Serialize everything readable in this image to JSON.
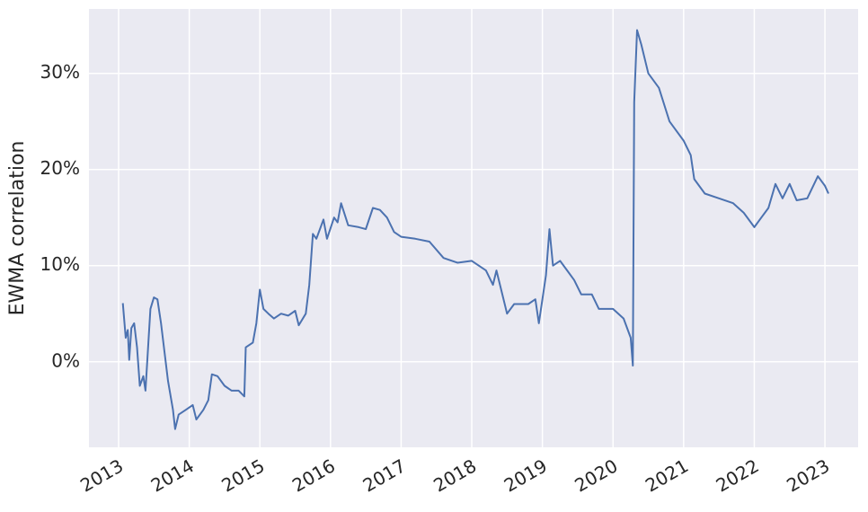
{
  "chart_data": {
    "type": "line",
    "ylabel": "EWMA correlation",
    "color": "#4c72b0",
    "grid": true,
    "xlim": [
      2012.58,
      2023.47
    ],
    "xticks": [
      2013,
      2014,
      2015,
      2016,
      2017,
      2018,
      2019,
      2020,
      2021,
      2022,
      2023
    ],
    "ylim": [
      -8.9,
      36.7
    ],
    "yticks": [
      {
        "value": 0,
        "label": "0%"
      },
      {
        "value": 10,
        "label": "10%"
      },
      {
        "value": 20,
        "label": "20%"
      },
      {
        "value": 30,
        "label": "30%"
      }
    ],
    "x": [
      2013.06,
      2013.1,
      2013.13,
      2013.15,
      2013.18,
      2013.22,
      2013.26,
      2013.3,
      2013.35,
      2013.38,
      2013.45,
      2013.5,
      2013.55,
      2013.6,
      2013.65,
      2013.7,
      2013.77,
      2013.8,
      2013.85,
      2013.95,
      2014.05,
      2014.1,
      2014.2,
      2014.27,
      2014.32,
      2014.4,
      2014.5,
      2014.6,
      2014.7,
      2014.78,
      2014.8,
      2014.9,
      2014.95,
      2015.0,
      2015.05,
      2015.12,
      2015.2,
      2015.3,
      2015.4,
      2015.5,
      2015.55,
      2015.65,
      2015.7,
      2015.75,
      2015.8,
      2015.9,
      2015.95,
      2016.05,
      2016.1,
      2016.15,
      2016.25,
      2016.4,
      2016.5,
      2016.6,
      2016.7,
      2016.8,
      2016.9,
      2017.0,
      2017.2,
      2017.4,
      2017.6,
      2017.8,
      2018.0,
      2018.2,
      2018.3,
      2018.35,
      2018.45,
      2018.5,
      2018.6,
      2018.8,
      2018.9,
      2018.95,
      2019.05,
      2019.1,
      2019.15,
      2019.25,
      2019.35,
      2019.45,
      2019.55,
      2019.7,
      2019.8,
      2020.0,
      2020.15,
      2020.25,
      2020.28,
      2020.3,
      2020.34,
      2020.4,
      2020.5,
      2020.65,
      2020.8,
      2021.0,
      2021.1,
      2021.15,
      2021.3,
      2021.5,
      2021.7,
      2021.85,
      2022.0,
      2022.1,
      2022.2,
      2022.3,
      2022.4,
      2022.5,
      2022.6,
      2022.75,
      2022.9,
      2023.0,
      2023.05
    ],
    "values": [
      6.1,
      2.5,
      3.3,
      0.2,
      3.5,
      4.0,
      1.5,
      -2.5,
      -1.5,
      -3.0,
      5.5,
      6.7,
      6.5,
      4.0,
      1.0,
      -2.0,
      -5.0,
      -7.0,
      -5.5,
      -5.0,
      -4.5,
      -6.0,
      -5.0,
      -4.0,
      -1.3,
      -1.5,
      -2.5,
      -3.0,
      -3.0,
      -3.6,
      1.5,
      2.0,
      4.0,
      7.5,
      5.5,
      5.0,
      4.5,
      5.0,
      4.8,
      5.3,
      3.8,
      5.0,
      8.0,
      13.3,
      12.8,
      14.8,
      12.8,
      15.0,
      14.5,
      16.5,
      14.2,
      14.0,
      13.8,
      16.0,
      15.8,
      15.0,
      13.5,
      13.0,
      12.8,
      12.5,
      10.8,
      10.3,
      10.5,
      9.5,
      8.0,
      9.5,
      6.5,
      5.0,
      6.0,
      6.0,
      6.5,
      4.0,
      9.0,
      13.8,
      10.0,
      10.5,
      9.5,
      8.5,
      7.0,
      7.0,
      5.5,
      5.5,
      4.5,
      2.5,
      -0.4,
      27.0,
      34.5,
      33.0,
      30.0,
      28.5,
      25.0,
      23.0,
      21.5,
      19.0,
      17.5,
      17.0,
      16.5,
      15.5,
      14.0,
      15.0,
      16.0,
      18.5,
      17.0,
      18.5,
      16.8,
      17.0,
      19.3,
      18.3,
      17.5
    ]
  }
}
